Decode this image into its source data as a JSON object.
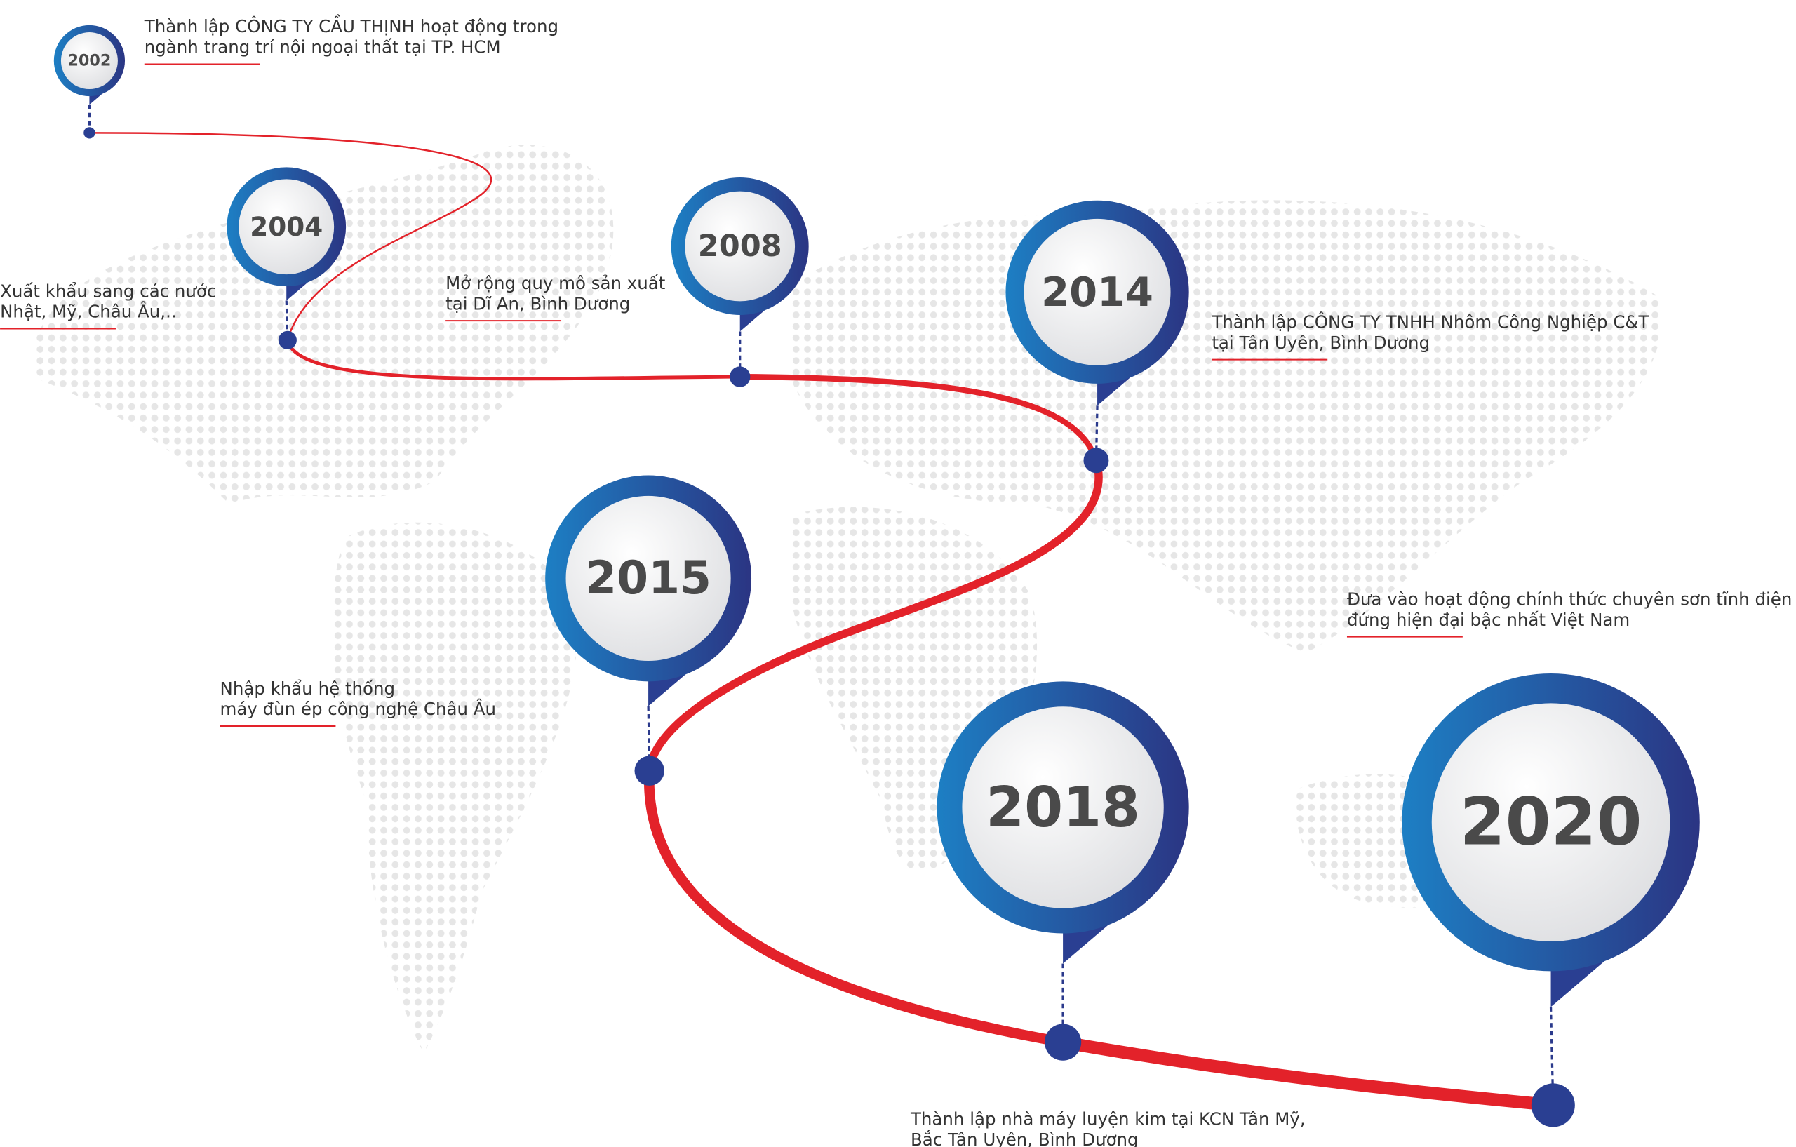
{
  "milestones": [
    {
      "year": "2002",
      "lines": [
        "Thành lập CÔNG TY CẦU THỊNH hoạt động trong",
        "ngành trang trí nội ngoại thất tại TP. HCM"
      ]
    },
    {
      "year": "2004",
      "lines": [
        "Xuất khẩu sang các nước",
        "Nhật, Mỹ, Châu Âu,.."
      ]
    },
    {
      "year": "2008",
      "lines": [
        "Mở rộng quy mô sản xuất",
        "tại Dĩ An, Bình Dương"
      ]
    },
    {
      "year": "2014",
      "lines": [
        "Thành lập CÔNG TY TNHH Nhôm Công Nghiệp C&T",
        "tại Tân Uyên, Bình Dương"
      ]
    },
    {
      "year": "2015",
      "lines": [
        "Nhập khẩu hệ thống",
        "máy đùn ép công nghệ Châu Âu"
      ]
    },
    {
      "year": "2018",
      "lines": [
        "Thành lập nhà máy luyện kim tại KCN Tân Mỹ,",
        "Bắc Tân Uyên, Bình Dương"
      ]
    },
    {
      "year": "2020",
      "lines": [
        "Đưa vào hoạt động chính thức chuyên sơn tĩnh điện",
        "đứng hiện đại bậc nhất Việt Nam"
      ]
    }
  ]
}
